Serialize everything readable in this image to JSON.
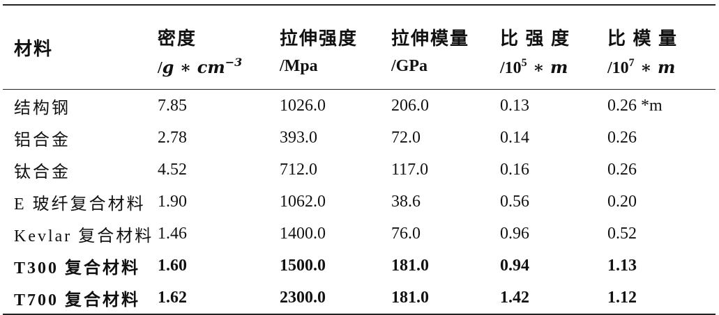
{
  "header": {
    "material": "材料",
    "density_title": "密度",
    "tensile_strength_title": "拉伸强度",
    "tensile_modulus_title": "拉伸模量",
    "specific_strength_title": "比 强 度",
    "specific_modulus_title": "比 模 量",
    "density_unit_slash": "/",
    "density_unit_g": "g",
    "density_unit_star": " ∗ ",
    "density_unit_cm": "cm",
    "density_unit_exp": "−3",
    "tensile_strength_unit": "/Mpa",
    "tensile_modulus_unit": "/GPa",
    "specific_strength_unit_prefix": "/10",
    "specific_strength_unit_exp": "5",
    "specific_strength_unit_suffix": " ∗ m",
    "specific_modulus_unit_prefix": "/10",
    "specific_modulus_unit_exp": "7",
    "specific_modulus_unit_suffix": " ∗ m"
  },
  "rows": [
    {
      "material": "结构钢",
      "density": "7.85",
      "tensile_strength": "1026.0",
      "tensile_modulus": "206.0",
      "specific_strength": "0.13",
      "specific_modulus": "0.26 *m",
      "bold": false
    },
    {
      "material": "铝合金",
      "density": "2.78",
      "tensile_strength": "393.0",
      "tensile_modulus": "72.0",
      "specific_strength": "0.14",
      "specific_modulus": "0.26",
      "bold": false
    },
    {
      "material": "钛合金",
      "density": "4.52",
      "tensile_strength": "712.0",
      "tensile_modulus": "117.0",
      "specific_strength": "0.16",
      "specific_modulus": "0.26",
      "bold": false
    },
    {
      "material": "E 玻纤复合材料",
      "density": "1.90",
      "tensile_strength": "1062.0",
      "tensile_modulus": "38.6",
      "specific_strength": "0.56",
      "specific_modulus": "0.20",
      "bold": false
    },
    {
      "material": "Kevlar 复合材料",
      "density": "1.46",
      "tensile_strength": "1400.0",
      "tensile_modulus": "76.0",
      "specific_strength": "0.96",
      "specific_modulus": "0.52",
      "bold": false
    },
    {
      "material": "T300 复合材料",
      "density": "1.60",
      "tensile_strength": "1500.0",
      "tensile_modulus": "181.0",
      "specific_strength": "0.94",
      "specific_modulus": "1.13",
      "bold": true
    },
    {
      "material": "T700 复合材料",
      "density": "1.62",
      "tensile_strength": "2300.0",
      "tensile_modulus": "181.0",
      "specific_strength": "1.42",
      "specific_modulus": "1.12",
      "bold": true
    }
  ]
}
